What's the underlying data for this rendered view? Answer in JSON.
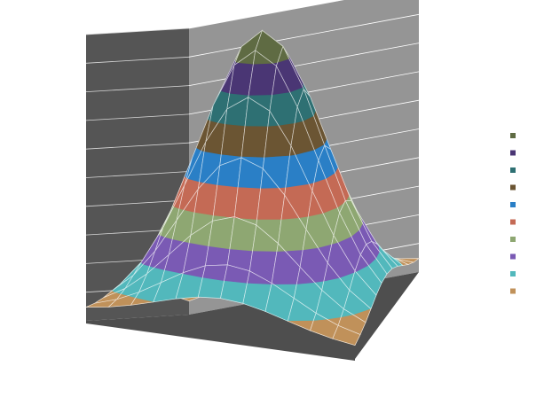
{
  "chart_data": {
    "type": "surface",
    "title": "",
    "grid": true,
    "legend_position": "right",
    "z_bands": 10,
    "band_colors": [
      "#C0915A",
      "#52B8BC",
      "#7A5AB4",
      "#8EA772",
      "#C46A55",
      "#2A7FC6",
      "#6B5533",
      "#2E7073",
      "#4A3674",
      "#5F6B43"
    ],
    "legend": {
      "position": "right",
      "entries": [
        {
          "label": "",
          "color": "#5F6B43"
        },
        {
          "label": "",
          "color": "#4A3674"
        },
        {
          "label": "",
          "color": "#2E7073"
        },
        {
          "label": "",
          "color": "#6B5533"
        },
        {
          "label": "",
          "color": "#2A7FC6"
        },
        {
          "label": "",
          "color": "#C46A55"
        },
        {
          "label": "",
          "color": "#8EA772"
        },
        {
          "label": "",
          "color": "#7A5AB4"
        },
        {
          "label": "",
          "color": "#52B8BC"
        },
        {
          "label": "",
          "color": "#C0915A"
        }
      ]
    },
    "wall_colors": {
      "left": "#555555",
      "back": "#959595",
      "floor": "#4E4E4E"
    }
  }
}
